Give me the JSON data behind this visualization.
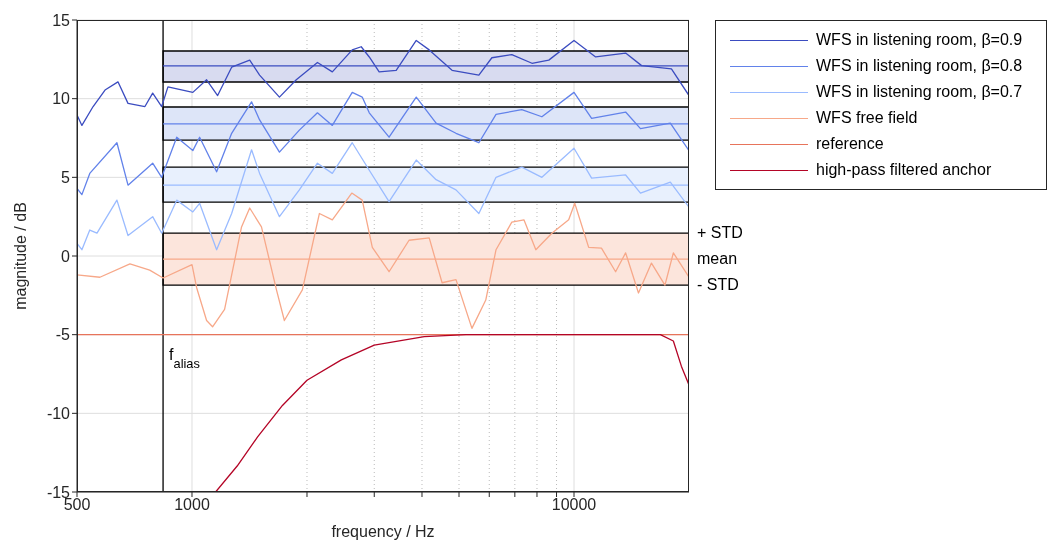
{
  "chart_data": {
    "type": "line",
    "xlabel": "frequency / Hz",
    "ylabel": "magnitude / dB",
    "log": "x",
    "xlim": [
      500,
      20000
    ],
    "ylim": [
      -15,
      15
    ],
    "xticks": [
      500,
      1000,
      {
        "value": 2000,
        "label": null
      },
      {
        "value": 3000,
        "label": null
      },
      {
        "value": 4000,
        "label": null
      },
      {
        "value": 5000,
        "label": null
      },
      {
        "value": 6000,
        "label": null
      },
      {
        "value": 7000,
        "label": null
      },
      {
        "value": 8000,
        "label": null
      },
      {
        "value": 9000,
        "label": null
      },
      10000
    ],
    "yticks": [
      -15,
      -10,
      -5,
      0,
      5,
      10,
      15
    ],
    "grid": true,
    "legend": "top right",
    "line_style": "solid",
    "marker": "none",
    "series": [
      {
        "name": "WFS in listening room, β=0.9",
        "color": "#3b4cc0",
        "x": [
          500,
          515,
          551,
          592,
          640,
          680,
          753,
          789,
          833,
          865,
          1005,
          1092,
          1167,
          1270,
          1416,
          1503,
          1694,
          1875,
          2130,
          2330,
          2627,
          2773,
          2911,
          3090,
          3424,
          3864,
          4178,
          4795,
          5636,
          6095,
          6874,
          7762,
          8590,
          10000,
          11395,
          13650,
          15030,
          17990,
          20000
        ],
        "values": [
          8.96,
          8.3,
          9.5,
          10.55,
          11.07,
          9.7,
          9.5,
          10.35,
          9.5,
          10.75,
          10.4,
          11.2,
          10.2,
          12.0,
          12.45,
          11.5,
          10.1,
          11.2,
          12.3,
          11.7,
          13.1,
          13.3,
          12.65,
          11.7,
          11.8,
          13.7,
          13.1,
          11.8,
          11.5,
          12.6,
          12.8,
          12.25,
          12.45,
          13.7,
          12.65,
          12.9,
          12.1,
          11.9,
          10.2
        ]
      },
      {
        "name": "WFS in listening room, β=0.8",
        "color": "#6282ea",
        "x": [
          500,
          515,
          540,
          636,
          680,
          789,
          833,
          912,
          1005,
          1047,
          1160,
          1270,
          1432,
          1503,
          1694,
          1910,
          2130,
          2330,
          2627,
          2790,
          2911,
          3280,
          3864,
          4355,
          4910,
          5636,
          6250,
          7300,
          8240,
          10000,
          11120,
          13650,
          14930,
          17870,
          20000
        ],
        "values": [
          4.3,
          3.9,
          5.25,
          7.2,
          4.5,
          5.9,
          5.0,
          7.55,
          6.7,
          7.55,
          5.35,
          7.8,
          9.8,
          8.65,
          6.6,
          8.0,
          9.1,
          8.3,
          10.4,
          10.1,
          9.1,
          7.55,
          10.1,
          8.45,
          7.8,
          7.2,
          9.0,
          9.3,
          8.85,
          10.4,
          8.75,
          9.15,
          8.1,
          8.45,
          6.7
        ]
      },
      {
        "name": "WFS in listening room, β=0.7",
        "color": "#9abbff",
        "x": [
          500,
          515,
          540,
          564,
          636,
          680,
          789,
          833,
          912,
          1005,
          1047,
          1160,
          1270,
          1432,
          1503,
          1694,
          1910,
          2130,
          2330,
          2627,
          2911,
          3280,
          3864,
          4355,
          4910,
          5636,
          6250,
          7300,
          8240,
          10000,
          11120,
          13650,
          14930,
          17870,
          20000
        ],
        "values": [
          0.8,
          0.4,
          1.65,
          1.45,
          3.55,
          1.3,
          2.5,
          1.45,
          3.55,
          2.8,
          3.35,
          0.4,
          2.7,
          6.75,
          5.25,
          2.5,
          4.2,
          5.9,
          5.25,
          7.2,
          5.45,
          3.45,
          6.1,
          4.85,
          4.2,
          2.7,
          5.0,
          5.65,
          5.0,
          6.85,
          4.95,
          5.15,
          4.0,
          4.7,
          3.1
        ]
      },
      {
        "name": "WFS free field",
        "color": "#f7a889",
        "x": [
          500,
          574,
          688,
          775,
          840,
          1000,
          1028,
          1092,
          1132,
          1217,
          1348,
          1416,
          1520,
          1664,
          1745,
          1945,
          2155,
          2330,
          2620,
          2790,
          2965,
          3280,
          3700,
          4178,
          4515,
          4910,
          5405,
          5875,
          6250,
          6874,
          7395,
          7945,
          8750,
          9685,
          10045,
          10925,
          11800,
          12850,
          13650,
          14750,
          15950,
          17300,
          18200,
          20000
        ],
        "values": [
          -1.2,
          -1.35,
          -0.5,
          -0.9,
          -1.4,
          -0.55,
          -2.0,
          -4.1,
          -4.5,
          -3.4,
          1.85,
          3.05,
          1.85,
          -2.15,
          -4.1,
          -2.15,
          2.7,
          2.3,
          4.0,
          3.55,
          0.55,
          -1.0,
          1.0,
          1.15,
          -1.7,
          -1.5,
          -4.6,
          -2.8,
          0.4,
          2.15,
          2.3,
          0.4,
          1.45,
          2.3,
          3.35,
          0.55,
          0.5,
          -1.0,
          0.2,
          -2.35,
          -0.45,
          -1.85,
          0.2,
          -1.35
        ]
      },
      {
        "name": "reference",
        "color": "#e7745b",
        "x": [
          500,
          20000
        ],
        "values": [
          -5,
          -5
        ]
      },
      {
        "name": "high-pass filtered anchor",
        "color": "#b40426",
        "x": [
          1153,
          1313,
          1485,
          1725,
          2000,
          2460,
          3000,
          4055,
          5215,
          10000,
          16830,
          18200,
          19100,
          20000
        ],
        "values": [
          -15,
          -13.35,
          -11.5,
          -9.5,
          -7.9,
          -6.6,
          -5.66,
          -5.13,
          -5,
          -5,
          -5,
          -5.4,
          -7.0,
          -8.2
        ]
      }
    ],
    "bands": [
      {
        "axis": "y",
        "from": 11.06,
        "to": 13.03,
        "color": "#d8dbf0"
      },
      {
        "axis": "y",
        "from": 7.37,
        "to": 9.47,
        "color": "#dde5f8"
      },
      {
        "axis": "y",
        "from": 3.43,
        "to": 5.65,
        "color": "#e8f0fd"
      },
      {
        "axis": "y",
        "from": -1.85,
        "to": 1.46,
        "color": "#fce5dc"
      }
    ],
    "ref_lines": [
      {
        "axis": "x",
        "value": 840,
        "label": "f$_{alias}$",
        "color": "#000000"
      },
      {
        "axis": "y",
        "value": 12.08,
        "color": "#3b4cc0"
      },
      {
        "axis": "y",
        "value": 8.4,
        "color": "#6282ea"
      },
      {
        "axis": "y",
        "value": 4.5,
        "color": "#9abbff"
      },
      {
        "axis": "y",
        "value": -0.2,
        "color": "#f7a889"
      }
    ],
    "annotations": [
      "+ STD",
      "mean",
      "- STD"
    ]
  }
}
